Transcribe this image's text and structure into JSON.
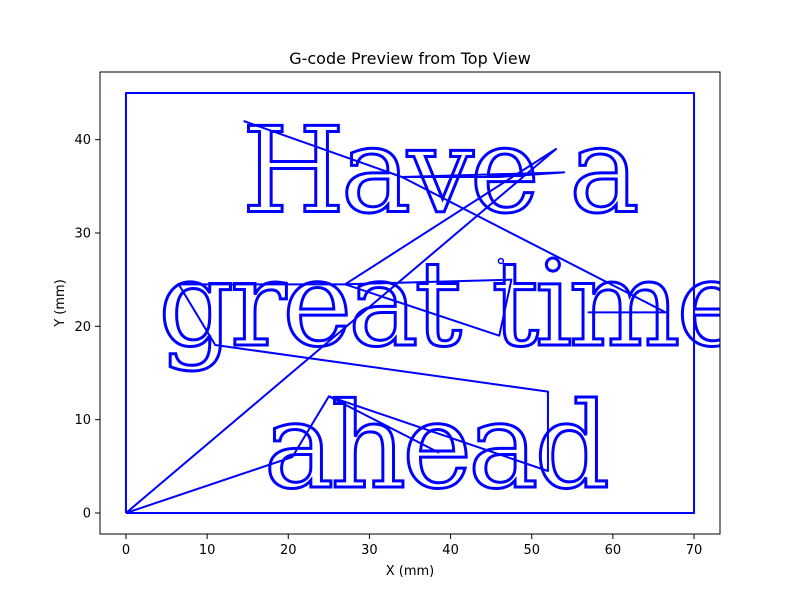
{
  "chart_data": {
    "type": "line",
    "title": "G-code Preview from Top View",
    "xlabel": "X (mm)",
    "ylabel": "Y (mm)",
    "xlim": [
      -3.2,
      73.2
    ],
    "ylim": [
      -2.25,
      47.25
    ],
    "xticks": [
      0,
      10,
      20,
      30,
      40,
      50,
      60,
      70
    ],
    "yticks": [
      0,
      10,
      20,
      30,
      40
    ],
    "grid": false,
    "line_color": "#0000ff",
    "series": [
      {
        "values_description_free": true,
        "x": [
          0,
          70,
          70,
          0,
          0
        ],
        "y": [
          0,
          0,
          45,
          45,
          0
        ]
      },
      {
        "x": [
          0,
          20.5,
          25,
          38.5,
          25,
          52,
          52,
          11,
          6.5,
          26.5,
          47.5,
          46,
          27,
          53,
          0
        ],
        "y": [
          0,
          6,
          12.5,
          6.5,
          12.5,
          4.5,
          13,
          18,
          24.5,
          24.5,
          25,
          19,
          24.5,
          39,
          0
        ]
      },
      {
        "x": [
          14.5,
          34,
          46,
          54,
          34,
          66.5,
          57,
          66.5
        ],
        "y": [
          42,
          36,
          36,
          36.5,
          36,
          21.5,
          21.5,
          21.5
        ]
      }
    ],
    "text_paths": [
      {
        "text": "Have a",
        "x": 14.3,
        "y": 32.3
      },
      {
        "text": "great time",
        "x": 4,
        "y": 18
      },
      {
        "text": "ahead",
        "x": 17,
        "y": 2.8
      }
    ]
  }
}
